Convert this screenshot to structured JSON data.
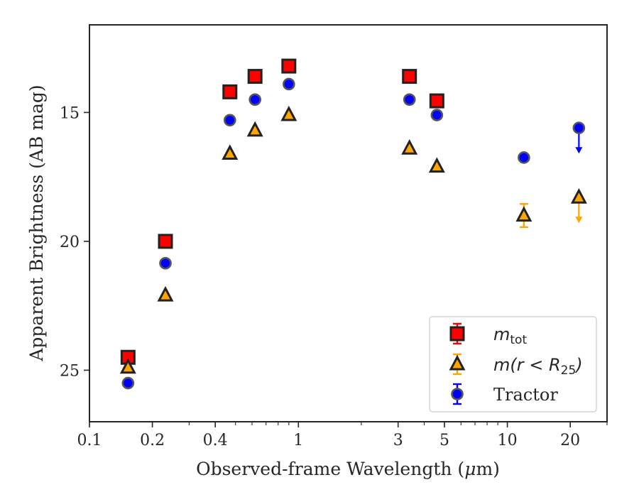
{
  "chart_data": {
    "type": "scatter",
    "xlabel_prefix": "Observed-frame Wavelength (",
    "xlabel_mu": "μ",
    "xlabel_suffix": "m)",
    "ylabel": "Apparent Brightness (AB mag)",
    "x_scale": "log",
    "xlim": [
      0.1,
      30
    ],
    "ylim": [
      27,
      11.6
    ],
    "y_inverted": true,
    "grid": false,
    "legend_position": "lower-right",
    "x_ticks": [
      {
        "value": 0.1,
        "label": "0.1"
      },
      {
        "value": 0.2,
        "label": "0.2"
      },
      {
        "value": 0.4,
        "label": "0.4"
      },
      {
        "value": 1,
        "label": "1"
      },
      {
        "value": 3,
        "label": "3"
      },
      {
        "value": 5,
        "label": "5"
      },
      {
        "value": 10,
        "label": "10"
      },
      {
        "value": 20,
        "label": "20"
      }
    ],
    "y_ticks": [
      {
        "value": 15,
        "label": "15"
      },
      {
        "value": 20,
        "label": "20"
      },
      {
        "value": 25,
        "label": "25"
      }
    ],
    "series": [
      {
        "key": "mtot",
        "legend_main": "m",
        "legend_sub": "tot",
        "marker": "square",
        "color": "#ff0000",
        "edge_color": "#222222",
        "points": [
          {
            "x": 0.153,
            "y": 24.5
          },
          {
            "x": 0.231,
            "y": 20.0
          },
          {
            "x": 0.47,
            "y": 14.2
          },
          {
            "x": 0.62,
            "y": 13.6
          },
          {
            "x": 0.9,
            "y": 13.2
          },
          {
            "x": 3.4,
            "y": 13.6
          },
          {
            "x": 4.6,
            "y": 14.55
          }
        ]
      },
      {
        "key": "mr25",
        "legend_main": "m(r < R",
        "legend_sub": "25",
        "legend_end": ")",
        "marker": "triangle",
        "color": "#ffa500",
        "edge_color": "#222222",
        "points": [
          {
            "x": 0.153,
            "y": 24.9
          },
          {
            "x": 0.231,
            "y": 22.1
          },
          {
            "x": 0.47,
            "y": 16.6
          },
          {
            "x": 0.62,
            "y": 15.7
          },
          {
            "x": 0.9,
            "y": 15.1
          },
          {
            "x": 3.4,
            "y": 16.4
          },
          {
            "x": 4.6,
            "y": 17.1
          },
          {
            "x": 12,
            "y": 19.0,
            "err": 0.45
          },
          {
            "x": 22,
            "y": 18.3,
            "upper_limit": true
          }
        ]
      },
      {
        "key": "tractor",
        "legend_main": "Tractor",
        "marker": "circle",
        "color": "#0000ff",
        "edge_color": "#555555",
        "points": [
          {
            "x": 0.153,
            "y": 25.5
          },
          {
            "x": 0.231,
            "y": 20.85
          },
          {
            "x": 0.47,
            "y": 15.3
          },
          {
            "x": 0.62,
            "y": 14.5
          },
          {
            "x": 0.9,
            "y": 13.9
          },
          {
            "x": 3.4,
            "y": 14.5
          },
          {
            "x": 4.6,
            "y": 15.1
          },
          {
            "x": 12,
            "y": 16.75
          },
          {
            "x": 22,
            "y": 15.6,
            "upper_limit": true
          }
        ]
      }
    ]
  }
}
